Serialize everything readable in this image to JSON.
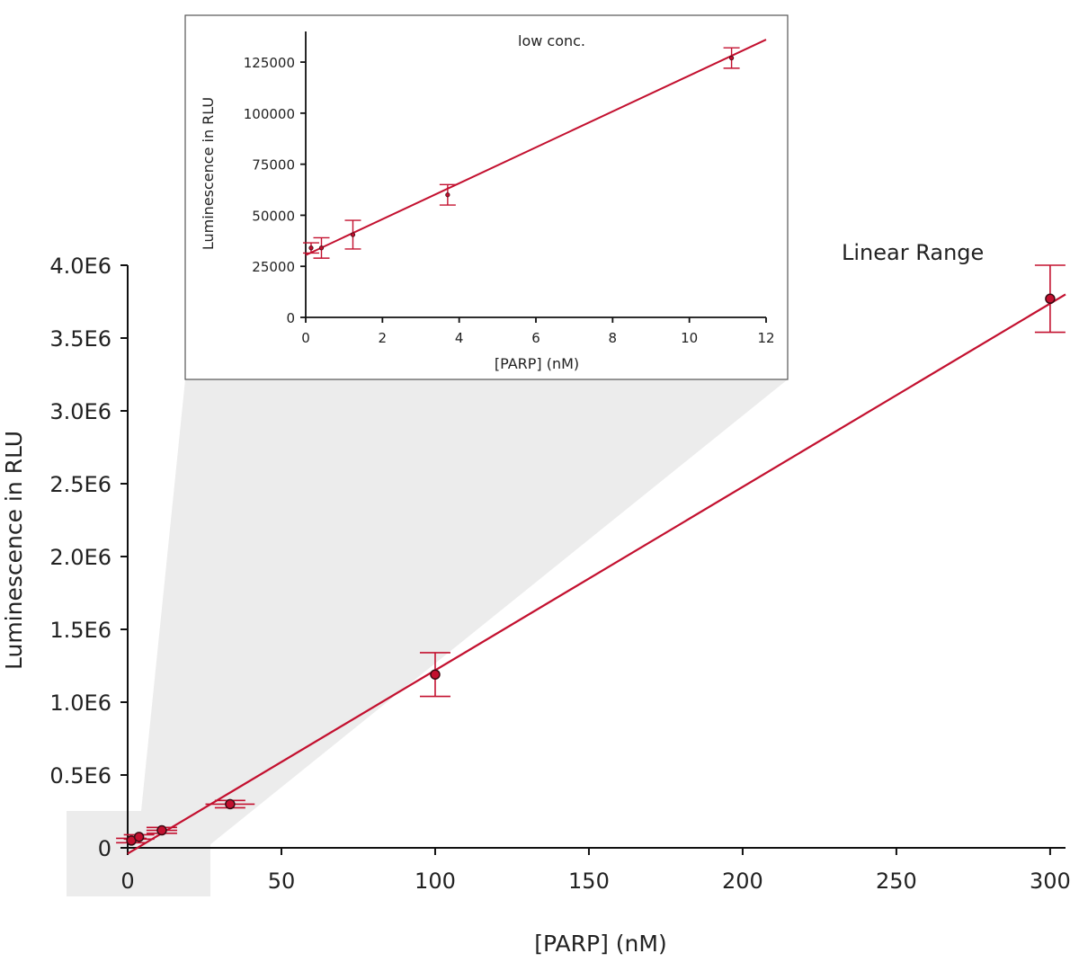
{
  "colors": {
    "series": "#c3102f",
    "marker_fill": "#c3102f",
    "marker_edge": "#3a0a12",
    "axis": "#111111",
    "zoom_region": "#ececec",
    "inset_border": "#555555"
  },
  "chart_data": [
    {
      "type": "scatter",
      "title": "",
      "annotation": "Linear Range",
      "xlabel": "[PARP] (nM)",
      "ylabel": "Luminescence in RLU",
      "xlim": [
        0,
        305
      ],
      "ylim": [
        0,
        4000000
      ],
      "xticks": [
        0,
        50,
        100,
        150,
        200,
        250,
        300
      ],
      "xtick_labels": [
        "0",
        "50",
        "100",
        "150",
        "200",
        "250",
        "300"
      ],
      "yticks": [
        0,
        500000,
        1000000,
        1500000,
        2000000,
        2500000,
        3000000,
        3500000,
        4000000
      ],
      "ytick_labels": [
        "0",
        "0.5E6",
        "1.0E6",
        "1.5E6",
        "2.0E6",
        "2.5E6",
        "3.0E6",
        "3.5E6",
        "4.0E6"
      ],
      "grid": false,
      "legend": "none",
      "series": [
        {
          "x": [
            1.2,
            3.7,
            11.1,
            33.3,
            100,
            300
          ],
          "y": [
            50000,
            75000,
            120000,
            300000,
            1190000,
            3770000
          ],
          "yerr": [
            15000,
            15000,
            20000,
            25000,
            150000,
            230000
          ],
          "xerr": [
            0,
            0,
            5,
            8,
            0,
            0
          ]
        }
      ],
      "fit_line": {
        "x": [
          0,
          305
        ],
        "y": [
          -40000,
          3800000
        ]
      }
    },
    {
      "type": "scatter",
      "title": "",
      "annotation": "low conc.",
      "xlabel": "[PARP] (nM)",
      "ylabel": "Luminescence in RLU",
      "xlim": [
        0,
        12
      ],
      "ylim": [
        0,
        140000
      ],
      "xticks": [
        0,
        2,
        4,
        6,
        8,
        10,
        12
      ],
      "xtick_labels": [
        "0",
        "2",
        "4",
        "6",
        "8",
        "10",
        "12"
      ],
      "yticks": [
        0,
        25000,
        50000,
        75000,
        100000,
        125000
      ],
      "ytick_labels": [
        "0",
        "25000",
        "50000",
        "75000",
        "100000",
        "125000"
      ],
      "grid": false,
      "legend": "none",
      "series": [
        {
          "x": [
            0.14,
            0.41,
            1.23,
            3.7,
            11.1
          ],
          "y": [
            34000,
            34000,
            40500,
            60000,
            127000
          ],
          "yerr": [
            2500,
            5000,
            7000,
            5000,
            5000
          ]
        }
      ],
      "fit_line": {
        "x": [
          0,
          12
        ],
        "y": [
          30500,
          136000
        ]
      }
    }
  ]
}
